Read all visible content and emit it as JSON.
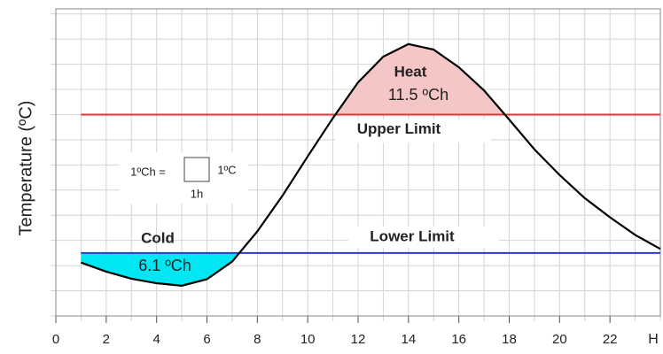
{
  "chart_data": {
    "type": "line",
    "ylabel": "Temperature (ºC)",
    "xlabel": "H",
    "x": [
      1,
      2,
      3,
      4,
      5,
      6,
      7,
      8,
      9,
      10,
      11,
      12,
      13,
      14,
      15,
      16,
      17,
      18,
      19,
      20,
      21,
      22,
      23,
      24
    ],
    "series": [
      {
        "color": "#000000",
        "values": [
          1.06,
          0.88,
          0.74,
          0.65,
          0.6,
          0.73,
          1.08,
          1.68,
          2.39,
          3.17,
          3.93,
          4.64,
          5.15,
          5.4,
          5.29,
          4.94,
          4.48,
          3.9,
          3.31,
          2.8,
          2.34,
          1.96,
          1.61,
          1.33
        ]
      }
    ],
    "limits": [
      {
        "name": "Upper Limit",
        "value": 4.0,
        "color": "#e8303a",
        "area_name": "Heat",
        "area_value": 11.5,
        "area_value_label": "11.5 ºCh",
        "area_color": "#f5c6c6",
        "side": "above"
      },
      {
        "name": "Lower Limit",
        "value": 1.25,
        "color": "#2a3ad0",
        "area_name": "Cold",
        "area_value": 6.1,
        "area_value_label": "6.1 ºCh",
        "area_color": "#00e6f2",
        "side": "below"
      }
    ],
    "unit_legend": {
      "left": "1ºCh =",
      "right": "1ºC",
      "bottom": "1h"
    },
    "xlim": [
      0,
      24
    ],
    "ylim": [
      0,
      6.1
    ],
    "xticks": [
      0,
      2,
      4,
      6,
      8,
      10,
      12,
      14,
      16,
      18,
      20,
      22
    ],
    "yticks": [
      0,
      0.5,
      1,
      1.5,
      2,
      2.5,
      3,
      3.5,
      4,
      4.5,
      5,
      5.5,
      6
    ],
    "grid": true
  }
}
